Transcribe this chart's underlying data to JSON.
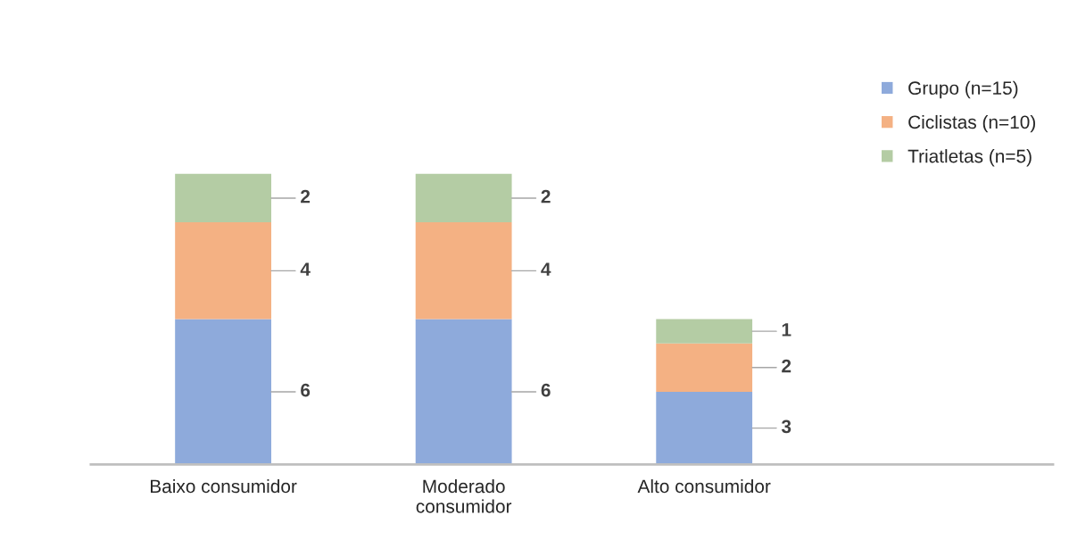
{
  "chart_data": {
    "type": "bar",
    "stacked": true,
    "data_labels": true,
    "legend": "top right",
    "grid": false,
    "categories": [
      "Baixo consumidor",
      "Moderado\nconsumidor",
      "Alto consumidor"
    ],
    "series": [
      {
        "name": "Grupo (n=15)",
        "color": "#8eaadb",
        "values": [
          6,
          6,
          3
        ]
      },
      {
        "name": "Ciclistas (n=10)",
        "color": "#f4b183",
        "values": [
          4,
          4,
          2
        ]
      },
      {
        "name": "Triatletas (n=5)",
        "color": "#b4cca4",
        "values": [
          2,
          2,
          1
        ]
      }
    ]
  }
}
